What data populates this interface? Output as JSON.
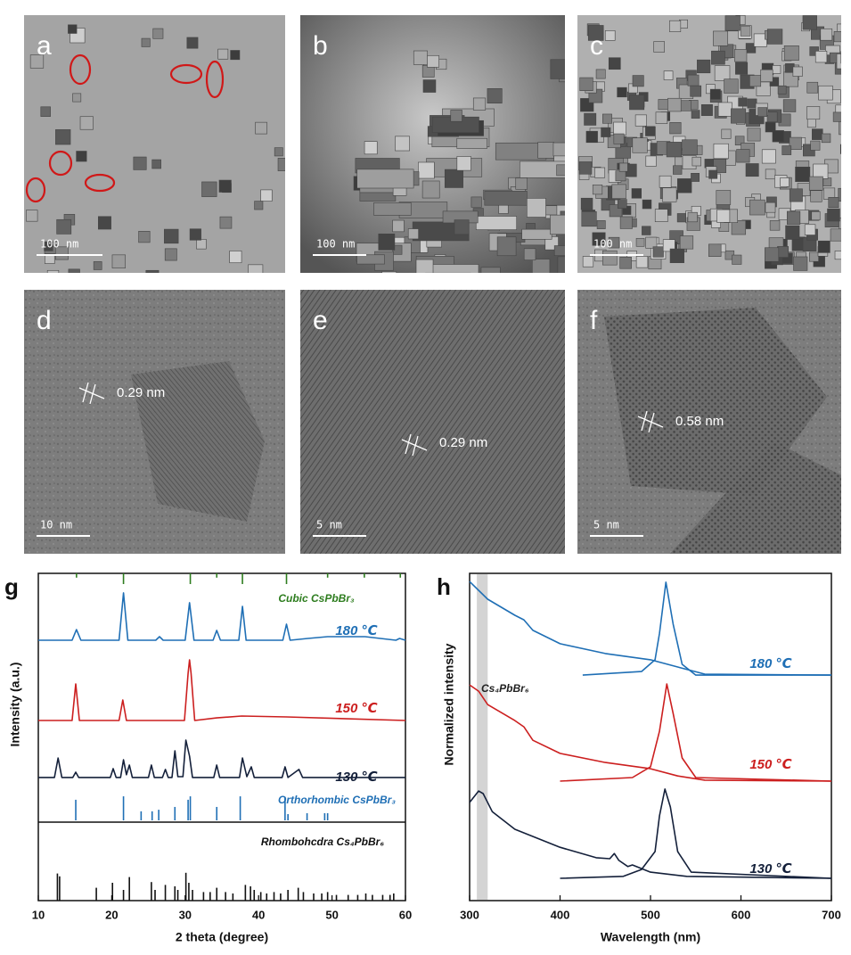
{
  "images": [
    {
      "label": "a",
      "scale_bar": "100 nm"
    },
    {
      "label": "b",
      "scale_bar": "100 nm"
    },
    {
      "label": "c",
      "scale_bar": "100 nm"
    },
    {
      "label": "d",
      "scale_bar": "10 nm",
      "annotation": "0.29 nm"
    },
    {
      "label": "e",
      "scale_bar": "5 nm",
      "annotation": "0.29 nm"
    },
    {
      "label": "f",
      "scale_bar": "5 nm",
      "annotation": "0.58 nm"
    }
  ],
  "chart_data": [
    {
      "type": "line",
      "panel": "g",
      "xlabel": "2 theta (degree)",
      "ylabel": "Intensity (a.u.)",
      "xlim": [
        10,
        60
      ],
      "xticks": [
        10,
        20,
        30,
        40,
        50,
        60
      ],
      "ylim": [
        0,
        100
      ],
      "series": [
        {
          "name": "180 ℃",
          "color": "#1f6fb5",
          "x": [
            10,
            14.6,
            15.2,
            15.8,
            21.0,
            21.6,
            22.2,
            26.0,
            26.5,
            27.0,
            30.0,
            30.6,
            31.2,
            33.8,
            34.3,
            34.8,
            37.3,
            37.8,
            38.3,
            43.3,
            43.8,
            44.3,
            46.7,
            49.4,
            54.5,
            58.7,
            59.2,
            60
          ],
          "values": [
            72,
            72,
            77.3,
            72,
            72,
            95.6,
            72,
            72,
            73.8,
            72,
            72,
            90.7,
            72,
            72,
            76.9,
            72,
            72,
            88.9,
            72,
            72,
            80,
            72,
            72.9,
            73.8,
            73.8,
            72,
            72.9,
            72
          ]
        },
        {
          "name": "150 ℃",
          "color": "#cc1f1f",
          "x": [
            10,
            14.6,
            15.1,
            15.6,
            21.0,
            21.5,
            22.0,
            29.9,
            30.4,
            30.6,
            30.8,
            31.3,
            34.3,
            37.7,
            43.8,
            60
          ],
          "values": [
            32,
            32,
            50.2,
            32,
            32,
            42.2,
            32,
            32,
            55.6,
            62.2,
            55.6,
            32,
            33.3,
            34.2,
            33.8,
            32
          ]
        },
        {
          "name": "130 ℃",
          "color": "#14203a",
          "x": [
            10,
            12.2,
            12.7,
            13.2,
            14.7,
            15.1,
            15.5,
            19.8,
            20.2,
            20.6,
            21.2,
            21.6,
            22.0,
            22.4,
            22.8,
            25.0,
            25.4,
            25.8,
            26.9,
            27.3,
            27.7,
            28.2,
            28.6,
            29.0,
            29.7,
            30.1,
            30.6,
            31.0,
            33.9,
            34.3,
            34.7,
            37.4,
            37.8,
            38.4,
            39.0,
            39.4,
            43.2,
            43.6,
            44.0,
            45.5,
            46.0,
            60
          ],
          "values": [
            3.6,
            3.6,
            13.3,
            3.6,
            3.6,
            6.2,
            3.6,
            3.6,
            8,
            3.6,
            3.6,
            12.4,
            5,
            9.8,
            3.6,
            3.6,
            9.8,
            3.6,
            3.6,
            7.6,
            3.6,
            3.6,
            16.9,
            4,
            4,
            22.2,
            14.2,
            3.6,
            3.6,
            9.8,
            3.6,
            3.6,
            13.3,
            4,
            8.9,
            3.6,
            3.6,
            8.9,
            3.6,
            7.6,
            3.6,
            3.6
          ]
        }
      ]
    },
    {
      "type": "stick",
      "name": "Cubic CsPbBr₃",
      "color": "#2e7d1f",
      "xlim": [
        10,
        60
      ],
      "ylim": [
        0,
        100
      ],
      "x": [
        15.2,
        21.6,
        30.7,
        34.3,
        37.8,
        43.8,
        49.4,
        54.4,
        59.3
      ],
      "values": [
        40,
        100,
        100,
        40,
        100,
        100,
        40,
        40,
        40
      ]
    },
    {
      "type": "stick",
      "name": "Orthorhombic CsPbBr₃",
      "color": "#1f6fb5",
      "xlim": [
        10,
        60
      ],
      "ylim": [
        0,
        100
      ],
      "x": [
        15.1,
        21.6,
        24.0,
        25.5,
        26.4,
        28.6,
        30.4,
        30.7,
        34.3,
        37.5,
        43.6,
        44.0,
        46.6,
        49.0,
        49.4
      ],
      "values": [
        66,
        77,
        29,
        29,
        34,
        43,
        66,
        77,
        43,
        77,
        71,
        20,
        23,
        23,
        23
      ]
    },
    {
      "type": "stick",
      "name": "Rhombohcdra Cs₄PbBr₆",
      "color": "#111111",
      "xlim": [
        10,
        60
      ],
      "ylim": [
        0,
        100
      ],
      "x": [
        12.6,
        12.9,
        17.9,
        20.1,
        21.6,
        22.4,
        25.4,
        25.9,
        27.3,
        28.6,
        29.0,
        30.1,
        30.5,
        31.0,
        32.5,
        33.4,
        34.3,
        35.5,
        36.5,
        38.2,
        38.9,
        39.4,
        40.3,
        41.1,
        42.1,
        43.0,
        44.0,
        45.4,
        46.1,
        47.5,
        48.6,
        49.4,
        50.6,
        52.2,
        53.5,
        54.6,
        55.5,
        56.9,
        57.9,
        58.4
      ],
      "values": [
        38,
        34,
        18,
        25,
        15,
        33,
        26,
        15,
        22,
        20,
        15,
        39,
        25,
        15,
        12,
        12,
        18,
        12,
        10,
        22,
        20,
        15,
        12,
        10,
        12,
        10,
        15,
        18,
        12,
        10,
        10,
        12,
        8,
        8,
        8,
        10,
        8,
        8,
        8,
        10
      ]
    },
    {
      "type": "line",
      "panel": "h",
      "xlabel": "Wavelength (nm)",
      "ylabel": "Normalized intensity",
      "xlim": [
        300,
        700
      ],
      "xticks": [
        300,
        400,
        500,
        600,
        700
      ],
      "ylim": [
        0,
        100
      ],
      "band": {
        "label": "Cs₄PbBr₆",
        "range": [
          308,
          320
        ]
      },
      "series": [
        {
          "name": "180 ℃",
          "color": "#1f6fb5",
          "curves": [
            {
              "x": [
                300,
                320,
                350,
                360,
                370,
                400,
                450,
                500,
                530,
                560,
                700
              ],
              "values": [
                97.5,
                92.1,
                87.2,
                85.8,
                82.6,
                78.5,
                75.5,
                73.6,
                71.4,
                69.2,
                68.9
              ]
            },
            {
              "x": [
                425,
                490,
                505,
                510,
                517,
                525,
                535,
                550,
                700
              ],
              "values": [
                68.9,
                70.0,
                73.6,
                81.7,
                97.3,
                84.5,
                72.2,
                68.9,
                68.9
              ]
            }
          ]
        },
        {
          "name": "150 ℃",
          "color": "#cc1f1f",
          "curves": [
            {
              "x": [
                300,
                310,
                320,
                350,
                360,
                370,
                400,
                450,
                500,
                530,
                560,
                700
              ],
              "values": [
                65.9,
                64.0,
                59.9,
                55.0,
                53.1,
                49.0,
                45.0,
                42.2,
                40.3,
                38.1,
                36.8,
                36.5
              ]
            },
            {
              "x": [
                400,
                480,
                500,
                510,
                518,
                525,
                535,
                550,
                700
              ],
              "values": [
                36.5,
                37.6,
                40.9,
                51.8,
                66.2,
                57.2,
                43.6,
                37.6,
                36.5
              ]
            }
          ]
        },
        {
          "name": "130 ℃",
          "color": "#14203a",
          "curves": [
            {
              "x": [
                300,
                310,
                315,
                325,
                350,
                400,
                440,
                455,
                460,
                465,
                475,
                480,
                500,
                540,
                700
              ],
              "values": [
                30.0,
                33.5,
                32.7,
                27.2,
                21.8,
                16.3,
                13.1,
                12.8,
                14.4,
                12.3,
                10.4,
                10.9,
                8.7,
                7.4,
                6.8
              ]
            },
            {
              "x": [
                400,
                470,
                490,
                505,
                510,
                516,
                522,
                530,
                545,
                700
              ],
              "values": [
                6.8,
                7.4,
                9.5,
                15.0,
                25.9,
                34.1,
                28.6,
                15.0,
                8.7,
                6.8
              ]
            }
          ]
        }
      ]
    }
  ]
}
